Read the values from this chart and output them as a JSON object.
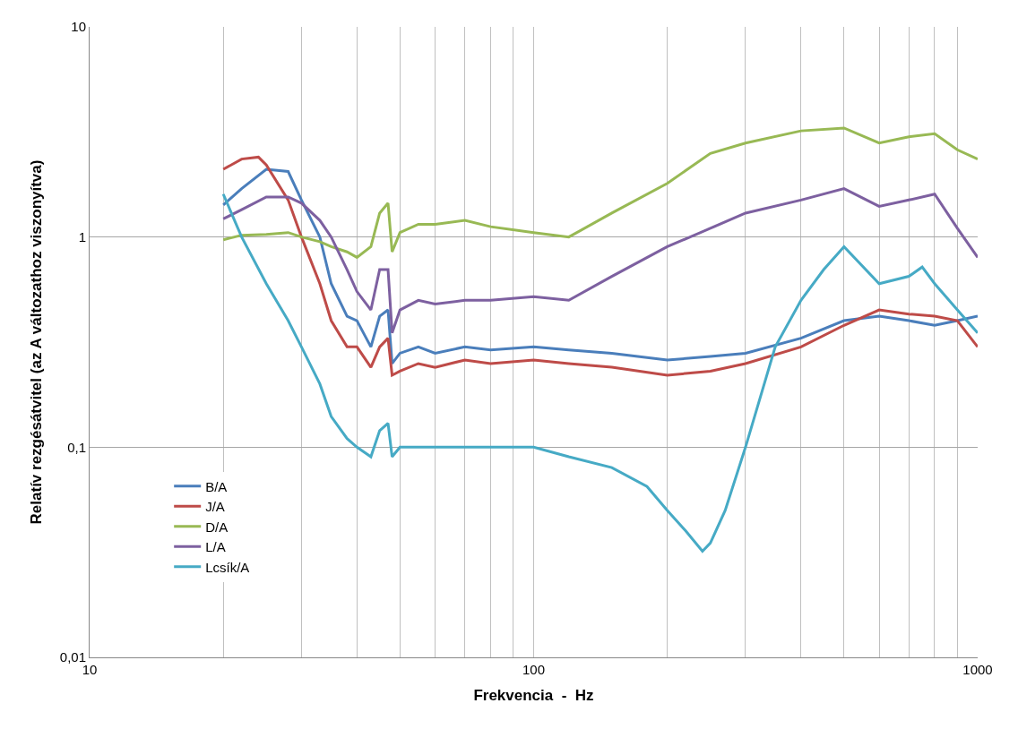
{
  "chart_data": {
    "type": "line",
    "xlabel": "Frekvencia  -  Hz",
    "ylabel": "Relatív rezgésátvitel (az A változathoz viszonyítva)",
    "log": "xy",
    "grid": true,
    "legend": "bottom left",
    "line_style": "solid",
    "marker": "none",
    "xlim": [
      10,
      1000
    ],
    "ylim": [
      0.01,
      10
    ],
    "xticks": [
      10,
      {
        "value": 20,
        "label": null
      },
      {
        "value": 30,
        "label": null
      },
      {
        "value": 40,
        "label": null
      },
      {
        "value": 50,
        "label": null
      },
      {
        "value": 60,
        "label": null
      },
      {
        "value": 70,
        "label": null
      },
      {
        "value": 80,
        "label": null
      },
      {
        "value": 90,
        "label": null
      },
      100,
      {
        "value": 200,
        "label": null
      },
      {
        "value": 300,
        "label": null
      },
      {
        "value": 400,
        "label": null
      },
      {
        "value": 500,
        "label": null
      },
      {
        "value": 600,
        "label": null
      },
      {
        "value": 700,
        "label": null
      },
      {
        "value": 800,
        "label": null
      },
      {
        "value": 900,
        "label": null
      },
      1000
    ],
    "yticks": [
      {
        "value": 0.01,
        "label": "0,01"
      },
      {
        "value": 0.1,
        "label": "0,1"
      },
      1,
      10
    ],
    "series": [
      {
        "name": "B/A",
        "color": "#4a7ebb",
        "x": [
          20,
          22,
          25,
          28,
          30,
          33,
          35,
          38,
          40,
          43,
          45,
          47,
          48,
          50,
          55,
          60,
          70,
          80,
          100,
          120,
          150,
          200,
          250,
          300,
          400,
          500,
          600,
          700,
          800,
          900,
          1000
        ],
        "values": [
          1.42,
          1.7,
          2.1,
          2.05,
          1.5,
          1.0,
          0.6,
          0.42,
          0.4,
          0.3,
          0.42,
          0.45,
          0.25,
          0.28,
          0.3,
          0.28,
          0.3,
          0.29,
          0.3,
          0.29,
          0.28,
          0.26,
          0.27,
          0.28,
          0.33,
          0.4,
          0.42,
          0.4,
          0.38,
          0.4,
          0.42
        ]
      },
      {
        "name": "J/A",
        "color": "#be4b48",
        "x": [
          20,
          22,
          24,
          25,
          28,
          30,
          33,
          35,
          38,
          40,
          43,
          45,
          47,
          48,
          50,
          55,
          60,
          70,
          80,
          100,
          120,
          150,
          200,
          250,
          300,
          400,
          500,
          600,
          700,
          800,
          900,
          1000
        ],
        "values": [
          2.1,
          2.35,
          2.4,
          2.2,
          1.5,
          1.0,
          0.6,
          0.4,
          0.3,
          0.3,
          0.24,
          0.3,
          0.33,
          0.22,
          0.23,
          0.25,
          0.24,
          0.26,
          0.25,
          0.26,
          0.25,
          0.24,
          0.22,
          0.23,
          0.25,
          0.3,
          0.38,
          0.45,
          0.43,
          0.42,
          0.4,
          0.3
        ]
      },
      {
        "name": "D/A",
        "color": "#98b954",
        "x": [
          20,
          22,
          25,
          28,
          30,
          33,
          35,
          38,
          40,
          43,
          45,
          47,
          48,
          50,
          55,
          60,
          70,
          80,
          100,
          120,
          150,
          200,
          250,
          300,
          400,
          500,
          600,
          700,
          800,
          900,
          1000
        ],
        "values": [
          0.97,
          1.02,
          1.03,
          1.05,
          1.0,
          0.95,
          0.9,
          0.85,
          0.8,
          0.9,
          1.3,
          1.45,
          0.85,
          1.05,
          1.15,
          1.15,
          1.2,
          1.12,
          1.05,
          1.0,
          1.3,
          1.8,
          2.5,
          2.8,
          3.2,
          3.3,
          2.8,
          3.0,
          3.1,
          2.6,
          2.35
        ]
      },
      {
        "name": "L/A",
        "color": "#7d60a0",
        "x": [
          20,
          22,
          25,
          28,
          30,
          33,
          35,
          38,
          40,
          43,
          45,
          47,
          48,
          50,
          55,
          60,
          70,
          80,
          100,
          120,
          150,
          200,
          250,
          300,
          400,
          500,
          600,
          700,
          800,
          900,
          1000
        ],
        "values": [
          1.22,
          1.35,
          1.55,
          1.55,
          1.45,
          1.2,
          1.0,
          0.7,
          0.55,
          0.45,
          0.7,
          0.7,
          0.35,
          0.45,
          0.5,
          0.48,
          0.5,
          0.5,
          0.52,
          0.5,
          0.65,
          0.9,
          1.1,
          1.3,
          1.5,
          1.7,
          1.4,
          1.5,
          1.6,
          1.1,
          0.8
        ]
      },
      {
        "name": "Lcsík/A",
        "color": "#46aac5",
        "x": [
          20,
          22,
          25,
          28,
          30,
          33,
          35,
          38,
          40,
          43,
          45,
          47,
          48,
          50,
          55,
          60,
          70,
          80,
          100,
          120,
          150,
          180,
          200,
          220,
          240,
          250,
          270,
          300,
          350,
          400,
          450,
          500,
          600,
          700,
          750,
          800,
          900,
          1000
        ],
        "values": [
          1.6,
          1.0,
          0.6,
          0.4,
          0.3,
          0.2,
          0.14,
          0.11,
          0.1,
          0.09,
          0.12,
          0.13,
          0.09,
          0.1,
          0.1,
          0.1,
          0.1,
          0.1,
          0.1,
          0.09,
          0.08,
          0.065,
          0.05,
          0.04,
          0.032,
          0.035,
          0.05,
          0.1,
          0.3,
          0.5,
          0.7,
          0.9,
          0.6,
          0.65,
          0.72,
          0.6,
          0.45,
          0.35
        ]
      }
    ]
  }
}
